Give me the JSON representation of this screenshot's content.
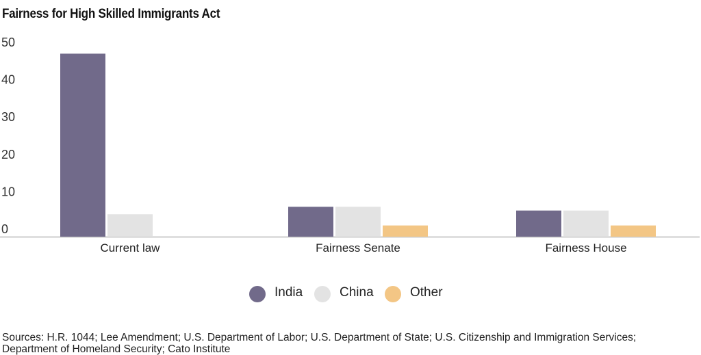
{
  "title": "Fairness for High Skilled Immigrants Act",
  "sources": "Sources: H.R. 1044; Lee Amendment; U.S. Department of Labor; U.S. Department of State; U.S. Citizenship and Immigration Services; Department of Homeland Security; Cato Institute",
  "chart_data": {
    "type": "bar",
    "categories": [
      "Current law",
      "Fairness Senate",
      "Fairness House"
    ],
    "series": [
      {
        "name": "India",
        "color": "#716a8a",
        "values": [
          49,
          8,
          7
        ]
      },
      {
        "name": "China",
        "color": "#e3e3e3",
        "values": [
          6,
          8,
          7
        ]
      },
      {
        "name": "Other",
        "color": "#f3c685",
        "values": [
          0,
          3,
          3
        ]
      }
    ],
    "yticks": [
      "0",
      "10",
      "20",
      "30",
      "40",
      "50"
    ],
    "ylim": [
      0,
      50
    ],
    "legend": "bottom-center",
    "grid": false
  }
}
